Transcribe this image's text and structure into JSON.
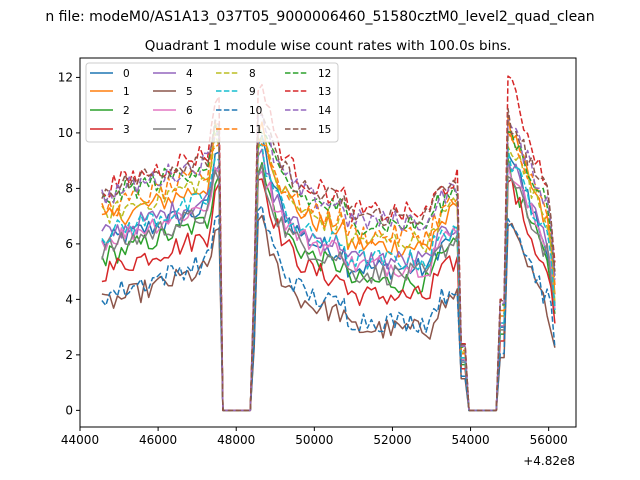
{
  "suptitle": "n file: modeM0/AS1A13_037T05_9000006460_51580cztM0_level2_quad_clean",
  "chart_data": {
    "type": "line",
    "title": "Quadrant 1 module wise count rates with 100.0s bins.",
    "xlabel": "",
    "ylabel": "",
    "x_offset_label": "+4.82e8",
    "xlim": [
      44000,
      56700
    ],
    "ylim": [
      -0.6,
      12.7
    ],
    "xticks": [
      44000,
      46000,
      48000,
      50000,
      52000,
      54000,
      56000
    ],
    "yticks": [
      0,
      2,
      4,
      6,
      8,
      10,
      12
    ],
    "grid": false,
    "legend": {
      "position": "top-left",
      "ncol": 4
    },
    "gaps": [
      {
        "start": 47500,
        "zero_from": 47600,
        "zero_to": 48400,
        "end": 48500
      },
      {
        "start": 53700,
        "zero_from": 53900,
        "zero_to": 54700,
        "end": 54900
      }
    ],
    "x_range": [
      44560,
      56160
    ],
    "series": [
      {
        "name": "0",
        "color": "#1f77b4",
        "style": "solid",
        "level": 6.0,
        "peak": 9.8
      },
      {
        "name": "1",
        "color": "#ff7f0e",
        "style": "solid",
        "level": 6.8,
        "peak": 10.5
      },
      {
        "name": "2",
        "color": "#2ca02c",
        "style": "solid",
        "level": 5.5,
        "peak": 8.9
      },
      {
        "name": "3",
        "color": "#d62728",
        "style": "solid",
        "level": 5.0,
        "peak": 8.6
      },
      {
        "name": "4",
        "color": "#9467bd",
        "style": "solid",
        "level": 6.3,
        "peak": 9.3
      },
      {
        "name": "5",
        "color": "#8c564b",
        "style": "solid",
        "level": 3.8,
        "peak": 6.9
      },
      {
        "name": "6",
        "color": "#e377c2",
        "style": "solid",
        "level": 6.1,
        "peak": 9.0
      },
      {
        "name": "7",
        "color": "#7f7f7f",
        "style": "solid",
        "level": 5.8,
        "peak": 8.7
      },
      {
        "name": "8",
        "color": "#bcbd22",
        "style": "dashed",
        "level": 7.0,
        "peak": 10.0
      },
      {
        "name": "9",
        "color": "#17becf",
        "style": "dashed",
        "level": 6.3,
        "peak": 9.5
      },
      {
        "name": "10",
        "color": "#1f77b4",
        "style": "dashed",
        "level": 4.1,
        "peak": 7.4
      },
      {
        "name": "11",
        "color": "#ff7f0e",
        "style": "dashed",
        "level": 7.2,
        "peak": 10.1
      },
      {
        "name": "12",
        "color": "#2ca02c",
        "style": "dashed",
        "level": 7.6,
        "peak": 10.3
      },
      {
        "name": "13",
        "color": "#d62728",
        "style": "dashed",
        "level": 8.0,
        "peak": 11.9
      },
      {
        "name": "14",
        "color": "#9467bd",
        "style": "dashed",
        "level": 7.7,
        "peak": 10.6
      },
      {
        "name": "15",
        "color": "#8c564b",
        "style": "dashed",
        "level": 7.9,
        "peak": 10.8
      }
    ]
  }
}
